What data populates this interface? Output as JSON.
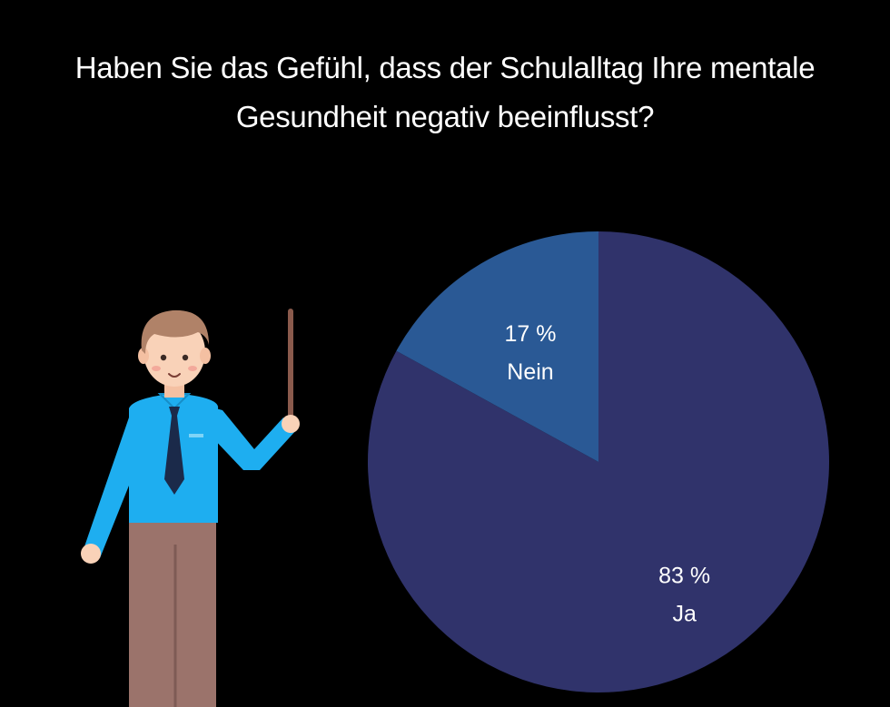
{
  "chart_data": {
    "type": "pie",
    "title_lines": [
      "Haben Sie das Gefühl, dass der Schulalltag Ihre mentale",
      "Gesundheit negativ beeinflusst?"
    ],
    "slices": [
      {
        "label": "Ja",
        "value": 83,
        "value_text": "83 %",
        "color": "#30336b"
      },
      {
        "label": "Nein",
        "value": 17,
        "value_text": "17 %",
        "color": "#2a5995"
      }
    ],
    "start_angle_deg": 0,
    "direction": "clockwise",
    "legend": "none"
  },
  "colors": {
    "background": "#000000",
    "text": "#ffffff",
    "shirt": "#1eaef0",
    "tie": "#1b2a4a",
    "pants": "#9b736b",
    "skin": "#f9d2b8",
    "hair": "#b08268",
    "pointer": "#8a5a4c"
  },
  "illustration": {
    "icon": "teacher-with-pointer-icon"
  }
}
